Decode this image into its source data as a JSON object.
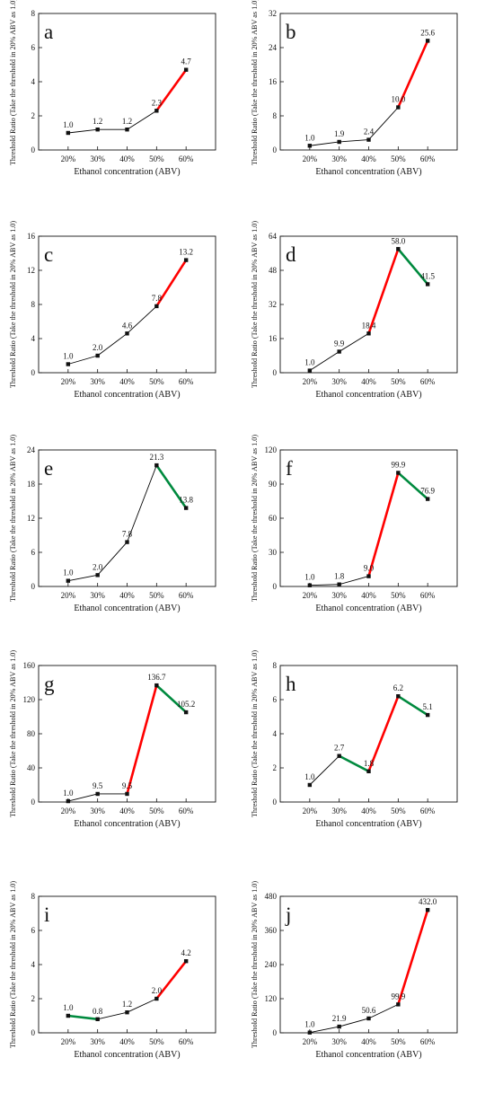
{
  "chart_data": [
    {
      "type": "line",
      "letter": "a",
      "categories": [
        "20%",
        "30%",
        "40%",
        "50%",
        "60%"
      ],
      "values": [
        1.0,
        1.2,
        1.2,
        2.3,
        4.7
      ],
      "data_labels": [
        "1.0",
        "1.2",
        "1.2",
        "2.3",
        "4.7"
      ],
      "ylim": [
        0,
        8
      ],
      "yticks": [
        0,
        2,
        4,
        6,
        8
      ],
      "xlabel": "Ethanol concentration (ABV)",
      "ylabel": "Threshold Ratio (Take the threshold in 20% ABV as 1.0)",
      "segment_colors": [
        "#000000",
        "#000000",
        "#000000",
        "#ff0000"
      ]
    },
    {
      "type": "line",
      "letter": "b",
      "categories": [
        "20%",
        "30%",
        "40%",
        "50%",
        "60%"
      ],
      "values": [
        1.0,
        1.9,
        2.4,
        10.0,
        25.6
      ],
      "data_labels": [
        "1.0",
        "1.9",
        "2.4",
        "10.0",
        "25.6"
      ],
      "ylim": [
        0,
        32
      ],
      "yticks": [
        0,
        8,
        16,
        24,
        32
      ],
      "xlabel": "Ethanol concentration (ABV)",
      "ylabel": "Threshold Ratio (Take the threshold in 20% ABV as 1.0)",
      "segment_colors": [
        "#000000",
        "#000000",
        "#000000",
        "#ff0000"
      ]
    },
    {
      "type": "line",
      "letter": "c",
      "categories": [
        "20%",
        "30%",
        "40%",
        "50%",
        "60%"
      ],
      "values": [
        1.0,
        2.0,
        4.6,
        7.8,
        13.2
      ],
      "data_labels": [
        "1.0",
        "2.0",
        "4.6",
        "7.8",
        "13.2"
      ],
      "ylim": [
        0,
        16
      ],
      "yticks": [
        0,
        4,
        8,
        12,
        16
      ],
      "xlabel": "Ethanol concentration (ABV)",
      "ylabel": "Threshold Ratio (Take the threshold in 20% ABV as 1.0)",
      "segment_colors": [
        "#000000",
        "#000000",
        "#000000",
        "#ff0000"
      ]
    },
    {
      "type": "line",
      "letter": "d",
      "categories": [
        "20%",
        "30%",
        "40%",
        "50%",
        "60%"
      ],
      "values": [
        1.0,
        9.9,
        18.4,
        58.0,
        41.5
      ],
      "data_labels": [
        "1.0",
        "9.9",
        "18.4",
        "58.0",
        "41.5"
      ],
      "ylim": [
        0,
        64
      ],
      "yticks": [
        0,
        16,
        32,
        48,
        64
      ],
      "xlabel": "Ethanol concentration (ABV)",
      "ylabel": "Threshold Ratio (Take the threshold in 20% ABV as 1.0)",
      "segment_colors": [
        "#000000",
        "#000000",
        "#ff0000",
        "#008a3e"
      ]
    },
    {
      "type": "line",
      "letter": "e",
      "categories": [
        "20%",
        "30%",
        "40%",
        "50%",
        "60%"
      ],
      "values": [
        1.0,
        2.0,
        7.8,
        21.3,
        13.8
      ],
      "data_labels": [
        "1.0",
        "2.0",
        "7.8",
        "21.3",
        "13.8"
      ],
      "ylim": [
        0,
        24
      ],
      "yticks": [
        0,
        6,
        12,
        18,
        24
      ],
      "xlabel": "Ethanol concentration (ABV)",
      "ylabel": "Threshold Ratio (Take the threshold in 20% ABV as 1.0)",
      "segment_colors": [
        "#000000",
        "#000000",
        "#000000",
        "#008a3e"
      ]
    },
    {
      "type": "line",
      "letter": "f",
      "categories": [
        "20%",
        "30%",
        "40%",
        "50%",
        "60%"
      ],
      "values": [
        1.0,
        1.8,
        9.0,
        99.9,
        76.9
      ],
      "data_labels": [
        "1.0",
        "1.8",
        "9.0",
        "99.9",
        "76.9"
      ],
      "ylim": [
        0,
        120
      ],
      "yticks": [
        0,
        30,
        60,
        90,
        120
      ],
      "xlabel": "Ethanol concentration (ABV)",
      "ylabel": "Threshold Ratio (Take the threshold in 20% ABV as 1.0)",
      "segment_colors": [
        "#000000",
        "#000000",
        "#ff0000",
        "#008a3e"
      ]
    },
    {
      "type": "line",
      "letter": "g",
      "categories": [
        "20%",
        "30%",
        "40%",
        "50%",
        "60%"
      ],
      "values": [
        1.0,
        9.5,
        9.5,
        136.7,
        105.2
      ],
      "data_labels": [
        "1.0",
        "9.5",
        "9.5",
        "136.7",
        "105.2"
      ],
      "ylim": [
        0,
        160
      ],
      "yticks": [
        0,
        40,
        80,
        120,
        160
      ],
      "xlabel": "Ethanol concentration (ABV)",
      "ylabel": "Threshold Ratio (Take the threshold in 20% ABV as 1.0)",
      "segment_colors": [
        "#000000",
        "#000000",
        "#ff0000",
        "#008a3e"
      ]
    },
    {
      "type": "line",
      "letter": "h",
      "categories": [
        "20%",
        "30%",
        "40%",
        "50%",
        "60%"
      ],
      "values": [
        1.0,
        2.7,
        1.8,
        6.2,
        5.1
      ],
      "data_labels": [
        "1.0",
        "2.7",
        "1.8",
        "6.2",
        "5.1"
      ],
      "ylim": [
        0,
        8
      ],
      "yticks": [
        0,
        2,
        4,
        6,
        8
      ],
      "xlabel": "Ethanol concentration (ABV)",
      "ylabel": "Threshold Ratio (Take the threshold in 20% ABV as 1.0)",
      "segment_colors": [
        "#000000",
        "#008a3e",
        "#ff0000",
        "#008a3e"
      ]
    },
    {
      "type": "line",
      "letter": "i",
      "categories": [
        "20%",
        "30%",
        "40%",
        "50%",
        "60%"
      ],
      "values": [
        1.0,
        0.8,
        1.2,
        2.0,
        4.2
      ],
      "data_labels": [
        "1.0",
        "0.8",
        "1.2",
        "2.0",
        "4.2"
      ],
      "ylim": [
        0,
        8
      ],
      "yticks": [
        0,
        2,
        4,
        6,
        8
      ],
      "xlabel": "Ethanol concentration (ABV)",
      "ylabel": "Threshold Ratio (Take the threshold in 20% ABV as 1.0)",
      "segment_colors": [
        "#008a3e",
        "#000000",
        "#000000",
        "#ff0000"
      ]
    },
    {
      "type": "line",
      "letter": "j",
      "categories": [
        "20%",
        "30%",
        "40%",
        "50%",
        "60%"
      ],
      "values": [
        1.0,
        21.9,
        50.6,
        99.9,
        432.0
      ],
      "data_labels": [
        "1.0",
        "21.9",
        "50.6",
        "99.9",
        "432.0"
      ],
      "ylim": [
        0,
        480
      ],
      "yticks": [
        0,
        120,
        240,
        360,
        480
      ],
      "xlabel": "Ethanol concentration (ABV)",
      "ylabel": "Threshold Ratio (Take the threshold in 20% ABV as 1.0)",
      "segment_colors": [
        "#000000",
        "#000000",
        "#000000",
        "#ff0000"
      ]
    }
  ]
}
